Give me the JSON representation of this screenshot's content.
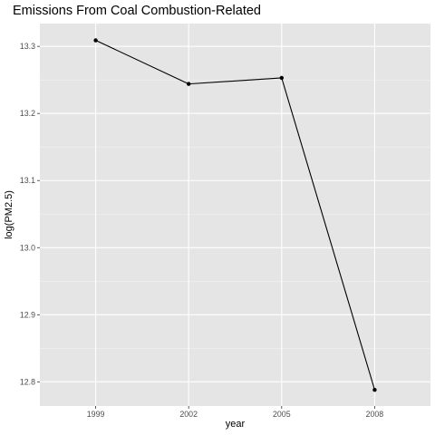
{
  "chart_data": {
    "type": "line",
    "title": "Emissions From Coal Combustion-Related",
    "xlabel": "year",
    "ylabel": "log(PM2.5)",
    "x": [
      1999,
      2002,
      2005,
      2008
    ],
    "y": [
      13.309,
      13.244,
      13.253,
      12.788
    ],
    "x_ticks": [
      "1999",
      "2002",
      "2005",
      "2008"
    ],
    "y_ticks": [
      "12.8",
      "12.9",
      "13.0",
      "13.1",
      "13.2",
      "13.3"
    ],
    "ylim": [
      12.764,
      13.334
    ],
    "grid": true,
    "legend": "none",
    "colors": {
      "panel_background": "#e5e5e5",
      "grid_major": "#ffffff",
      "grid_minor": "#f2f2f2",
      "line": "#000000",
      "point": "#000000",
      "tick_label": "#4d4d4d"
    }
  }
}
